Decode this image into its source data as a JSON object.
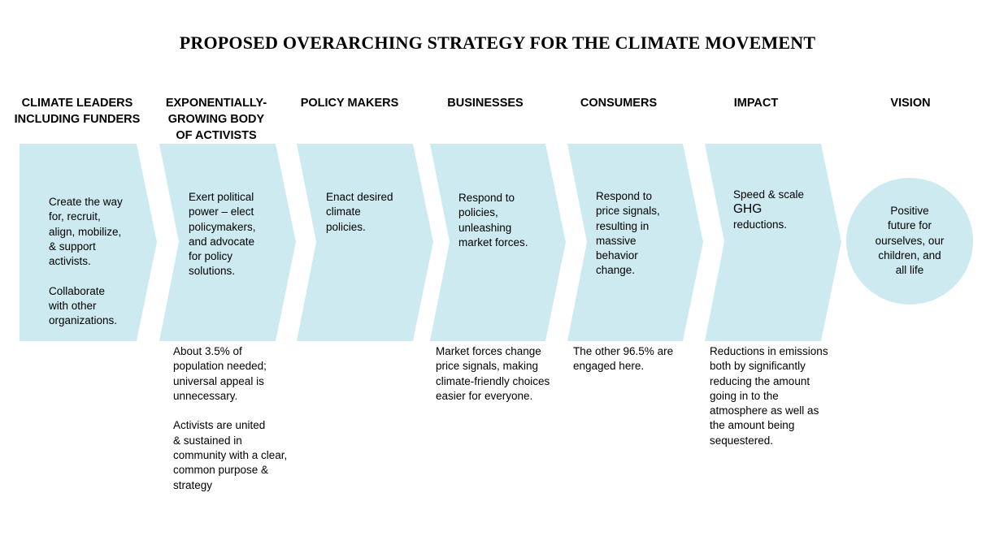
{
  "title": "PROPOSED OVERARCHING STRATEGY FOR THE CLIMATE MOVEMENT",
  "colors": {
    "shape_fill": "#cdeaf0",
    "text": "#000000"
  },
  "columns": [
    {
      "heading": "CLIMATE LEADERS\nINCLUDING FUNDERS",
      "body": "Create the way\nfor, recruit,\nalign, mobilize,\n& support\nactivists.\n\nCollaborate\nwith other\norganizations.",
      "note": ""
    },
    {
      "heading": "EXPONENTIALLY-\nGROWING BODY\nOF ACTIVISTS",
      "body": "Exert political\npower – elect\npolicymakers,\nand advocate\nfor policy\nsolutions.",
      "note": "About 3.5% of\npopulation needed;\nuniversal appeal is\nunnecessary.\n\nActivists are united\n& sustained in\ncommunity with a clear,\ncommon purpose &\nstrategy"
    },
    {
      "heading": "POLICY MAKERS",
      "body": "Enact desired\nclimate\npolicies.",
      "note": ""
    },
    {
      "heading": "BUSINESSES",
      "body": "Respond to\npolicies,\nunleashing\nmarket forces.",
      "note": "Market forces change\nprice signals, making\nclimate-friendly choices\neasier for everyone."
    },
    {
      "heading": "CONSUMERS",
      "body": "Respond to\nprice signals,\nresulting in\nmassive\nbehavior\nchange.",
      "note": "The other 96.5% are\nengaged here."
    },
    {
      "heading": "IMPACT",
      "body_line1": "Speed & scale",
      "body_ghg": "GHG",
      "body_line3": "reductions.",
      "note": "Reductions in emissions\nboth by significantly\nreducing the amount\ngoing in to the\natmosphere as well as\nthe amount being\nsequestered."
    },
    {
      "heading": "VISION",
      "body": "Positive\nfuture for\nourselves, our\nchildren, and\nall life",
      "note": ""
    }
  ]
}
